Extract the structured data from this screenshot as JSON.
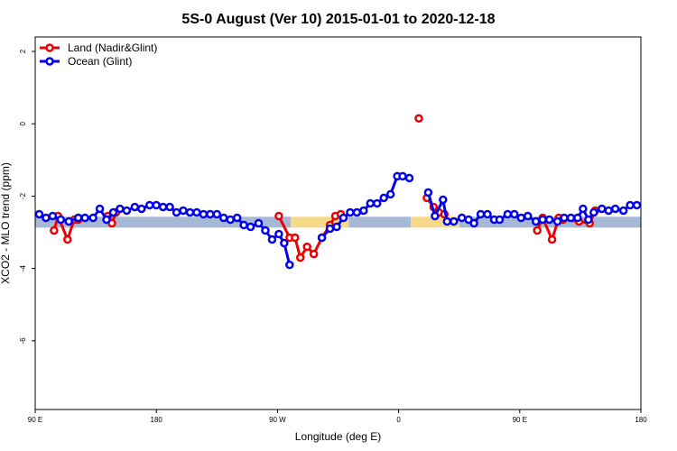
{
  "chart_data": {
    "type": "line",
    "title": "5S-0 August (Ver 10)   2015-01-01 to 2020-12-18",
    "xlabel": "Longitude (deg E)",
    "ylabel": "XCO2 - MLO trend (ppm)",
    "x_ticks": [
      {
        "value": 0,
        "label": "90 E"
      },
      {
        "value": 90,
        "label": "180"
      },
      {
        "value": 180,
        "label": "90 W"
      },
      {
        "value": 270,
        "label": "0"
      },
      {
        "value": 360,
        "label": "90 E"
      },
      {
        "value": 450,
        "label": "180"
      }
    ],
    "y_ticks": [
      {
        "value": 2,
        "label": "2"
      },
      {
        "value": 0,
        "label": "0"
      },
      {
        "value": -2,
        "label": "-2"
      },
      {
        "value": -4,
        "label": "-4"
      },
      {
        "value": -6,
        "label": "-6"
      }
    ],
    "xlim": [
      0,
      450
    ],
    "ylim": [
      -7.9,
      2.4
    ],
    "legend_position": "top-left",
    "grid": false,
    "surface_band": {
      "y": -2.72,
      "segments": [
        {
          "start": 0,
          "end": 190,
          "surface": "ocean",
          "color": "#a5b8d6"
        },
        {
          "start": 190,
          "end": 233,
          "surface": "land",
          "color": "#f7d98a"
        },
        {
          "start": 233,
          "end": 279,
          "surface": "ocean",
          "color": "#a5b8d6"
        },
        {
          "start": 279,
          "end": 315,
          "surface": "land",
          "color": "#f7d98a"
        },
        {
          "start": 315,
          "end": 450,
          "surface": "ocean",
          "color": "#a5b8d6"
        }
      ]
    },
    "series": [
      {
        "name": "Land (Nadir&Glint)",
        "color": "#ee0000",
        "segments": [
          [
            [
              14,
              -2.95
            ],
            [
              17,
              -2.55
            ],
            [
              24,
              -3.2
            ],
            [
              29,
              -2.65
            ],
            [
              32,
              -2.65
            ]
          ],
          [
            [
              54,
              -2.55
            ],
            [
              57,
              -2.75
            ],
            [
              60,
              -2.45
            ]
          ],
          [
            [
              181,
              -2.55
            ],
            [
              189,
              -3.15
            ],
            [
              193,
              -3.15
            ],
            [
              197,
              -3.7
            ],
            [
              202,
              -3.4
            ],
            [
              207,
              -3.6
            ],
            [
              213,
              -3.15
            ],
            [
              219,
              -2.8
            ],
            [
              223,
              -2.55
            ],
            [
              227,
              -2.5
            ]
          ],
          [
            [
              291,
              -2.05
            ],
            [
              296,
              -2.3
            ],
            [
              300,
              -2.45
            ],
            [
              304,
              -2.5
            ]
          ],
          [
            [
              373,
              -2.95
            ],
            [
              377,
              -2.6
            ],
            [
              384,
              -3.2
            ],
            [
              389,
              -2.6
            ],
            [
              392,
              -2.65
            ],
            [
              404,
              -2.7
            ],
            [
              412,
              -2.75
            ],
            [
              416,
              -2.4
            ]
          ]
        ],
        "isolated": [
          [
            285,
            0.15
          ]
        ]
      },
      {
        "name": "Ocean (Glint)",
        "color": "#0000ee",
        "segments": [
          [
            [
              3,
              -2.5
            ],
            [
              8,
              -2.6
            ],
            [
              13,
              -2.55
            ],
            [
              19,
              -2.65
            ],
            [
              25,
              -2.7
            ],
            [
              32,
              -2.6
            ],
            [
              37,
              -2.6
            ],
            [
              43,
              -2.6
            ],
            [
              48,
              -2.35
            ],
            [
              53,
              -2.65
            ],
            [
              58,
              -2.45
            ],
            [
              63,
              -2.35
            ],
            [
              68,
              -2.4
            ],
            [
              74,
              -2.3
            ],
            [
              79,
              -2.35
            ],
            [
              85,
              -2.25
            ],
            [
              90,
              -2.25
            ],
            [
              95,
              -2.3
            ],
            [
              100,
              -2.3
            ],
            [
              105,
              -2.45
            ],
            [
              110,
              -2.4
            ],
            [
              115,
              -2.45
            ],
            [
              120,
              -2.45
            ],
            [
              125,
              -2.5
            ],
            [
              130,
              -2.5
            ],
            [
              135,
              -2.5
            ],
            [
              140,
              -2.6
            ],
            [
              145,
              -2.65
            ],
            [
              150,
              -2.6
            ],
            [
              155,
              -2.8
            ],
            [
              160,
              -2.85
            ],
            [
              166,
              -2.75
            ],
            [
              171,
              -2.95
            ],
            [
              176,
              -3.2
            ],
            [
              181,
              -3.05
            ],
            [
              185,
              -3.3
            ],
            [
              189,
              -3.9
            ]
          ],
          [
            [
              213,
              -3.15
            ],
            [
              219,
              -2.9
            ],
            [
              224,
              -2.85
            ],
            [
              229,
              -2.6
            ],
            [
              234,
              -2.45
            ],
            [
              239,
              -2.45
            ],
            [
              244,
              -2.4
            ],
            [
              249,
              -2.2
            ],
            [
              254,
              -2.2
            ],
            [
              259,
              -2.05
            ],
            [
              264,
              -1.95
            ],
            [
              269,
              -1.45
            ],
            [
              273,
              -1.45
            ],
            [
              278,
              -1.5
            ]
          ],
          [
            [
              292,
              -1.9
            ],
            [
              297,
              -2.55
            ],
            [
              303,
              -2.1
            ],
            [
              306,
              -2.7
            ],
            [
              311,
              -2.7
            ],
            [
              317,
              -2.6
            ],
            [
              322,
              -2.65
            ],
            [
              326,
              -2.75
            ],
            [
              331,
              -2.5
            ],
            [
              336,
              -2.5
            ],
            [
              341,
              -2.65
            ],
            [
              345,
              -2.65
            ],
            [
              351,
              -2.5
            ],
            [
              356,
              -2.5
            ],
            [
              361,
              -2.6
            ],
            [
              366,
              -2.55
            ],
            [
              372,
              -2.7
            ],
            [
              377,
              -2.65
            ],
            [
              382,
              -2.65
            ],
            [
              388,
              -2.7
            ],
            [
              393,
              -2.6
            ],
            [
              398,
              -2.6
            ],
            [
              403,
              -2.6
            ],
            [
              407,
              -2.35
            ],
            [
              411,
              -2.65
            ],
            [
              415,
              -2.45
            ],
            [
              421,
              -2.35
            ],
            [
              426,
              -2.4
            ],
            [
              431,
              -2.35
            ],
            [
              437,
              -2.4
            ],
            [
              442,
              -2.25
            ],
            [
              447,
              -2.25
            ]
          ]
        ],
        "isolated": []
      }
    ]
  }
}
